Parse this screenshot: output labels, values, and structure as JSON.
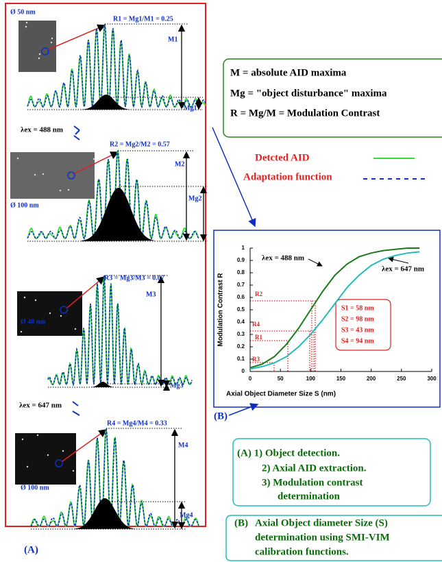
{
  "panel_a": {
    "label": "(A)",
    "excitations": [
      "λex = 488 nm",
      "λex = 647 nm"
    ],
    "panels": [
      {
        "size": "Ø 50 nm",
        "ratio": "R1 = Mg1/M1 = 0.25",
        "m": "M1",
        "mg": "Mg1"
      },
      {
        "size": "Ø 100 nm",
        "ratio": "R2 = Mg2/M2 = 0.57",
        "m": "M2",
        "mg": "Mg2"
      },
      {
        "size": "Ø 40 nm",
        "ratio": "R3 = Mg3/M3 = 0.07",
        "m": "M3",
        "mg": "Mg3"
      },
      {
        "size": "Ø 100 nm",
        "ratio": "R4 = Mg4/M4 = 0.33",
        "m": "M4",
        "mg": "Mg4"
      }
    ]
  },
  "definitions": [
    "M = absolute AID maxima",
    "Mg = \"object disturbance\"  maxima",
    "R = Mg/M = Modulation Contrast"
  ],
  "legend": [
    "Detcted AID",
    "Adaptation function"
  ],
  "chart_label": "(B)",
  "chart_data": {
    "type": "line",
    "x_label": "Axial Object Diameter Size S (nm)",
    "y_label": "Modulation Contrast R",
    "x": [
      0,
      20,
      40,
      60,
      80,
      100,
      120,
      140,
      160,
      180,
      200,
      220,
      240,
      260,
      280
    ],
    "series": [
      {
        "name": "λex = 488 nm",
        "color": "#1a7a1a",
        "values": [
          0.03,
          0.06,
          0.12,
          0.22,
          0.35,
          0.5,
          0.65,
          0.78,
          0.87,
          0.93,
          0.96,
          0.98,
          0.99,
          1.0,
          1.0
        ]
      },
      {
        "name": "λex = 647 nm",
        "color": "#22bbbb",
        "values": [
          0.02,
          0.04,
          0.07,
          0.12,
          0.2,
          0.3,
          0.42,
          0.55,
          0.68,
          0.78,
          0.86,
          0.91,
          0.94,
          0.96,
          0.97
        ]
      }
    ],
    "xlim": [
      0,
      300
    ],
    "xticks": [
      0,
      50,
      100,
      150,
      200,
      250,
      300
    ],
    "ylim": [
      0,
      1
    ],
    "yticks": [
      0,
      0.1,
      0.2,
      0.3,
      0.4,
      0.5,
      0.6,
      0.7,
      0.8,
      0.9,
      1
    ],
    "r_labels": [
      "R2",
      "R4",
      "R1",
      "R3"
    ],
    "s_labels": [
      "S1 = 58 nm",
      "S2 = 98 nm",
      "S3 = 43 nm",
      "S4 = 94 nm"
    ]
  },
  "steps": {
    "first": [
      "(A)  1) Object detection.",
      "2) Axial AID extraction.",
      "3) Modulation contrast",
      "determination"
    ],
    "second": [
      "(B)",
      "Axial Object diameter Size (S)",
      "determination using SMI-VIM",
      "calibration functions."
    ]
  }
}
